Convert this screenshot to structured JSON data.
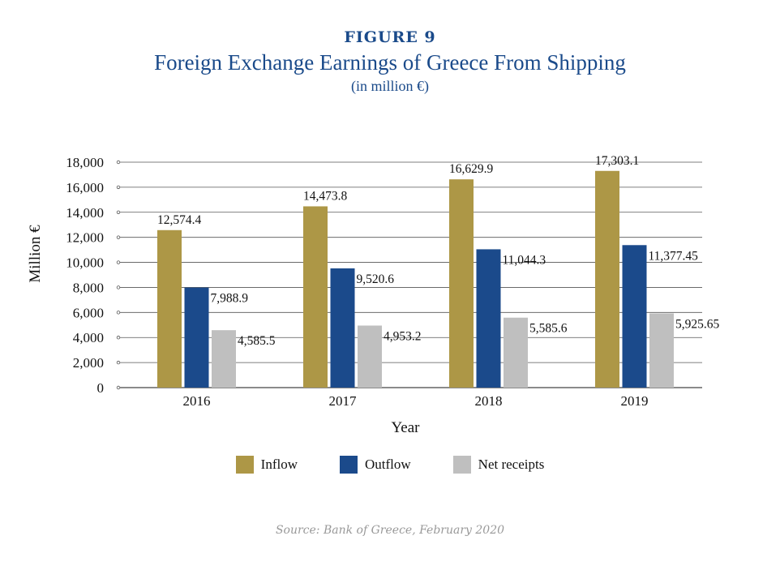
{
  "figure_label": "FIGURE 9",
  "colors": {
    "inflow": "#ad9746",
    "outflow": "#1b4a8b",
    "net": "#bfbfbf",
    "title": "#1a4a8a"
  },
  "source": "Source: Bank of Greece, February 2020",
  "chart_data": {
    "type": "bar",
    "title": "Foreign Exchange Earnings of Greece From Shipping",
    "subtitle": "(in million €)",
    "xlabel": "Year",
    "ylabel": "Million €",
    "ylim": [
      0,
      18000
    ],
    "yticks": [
      "0",
      "2,000",
      "4,000",
      "6,000",
      "8,000",
      "10,000",
      "12,000",
      "14,000",
      "16,000",
      "18,000"
    ],
    "grid": true,
    "legend": "bottom",
    "categories": [
      "2016",
      "2017",
      "2018",
      "2019"
    ],
    "series": [
      {
        "name": "Inflow",
        "values": [
          12574.4,
          14473.8,
          16629.9,
          17303.1
        ],
        "labels": [
          "12,574.4",
          "14,473.8",
          "16,629.9",
          "17,303.1"
        ]
      },
      {
        "name": "Outflow",
        "values": [
          7988.9,
          9520.6,
          11044.3,
          11377.45
        ],
        "labels": [
          "7,988.9",
          "9,520.6",
          "11,044.3",
          "11,377.45"
        ]
      },
      {
        "name": "Net receipts",
        "values": [
          4585.5,
          4953.2,
          5585.6,
          5925.65
        ],
        "labels": [
          "4,585.5",
          "4,953.2",
          "5,585.6",
          "5,925.65"
        ]
      }
    ]
  }
}
